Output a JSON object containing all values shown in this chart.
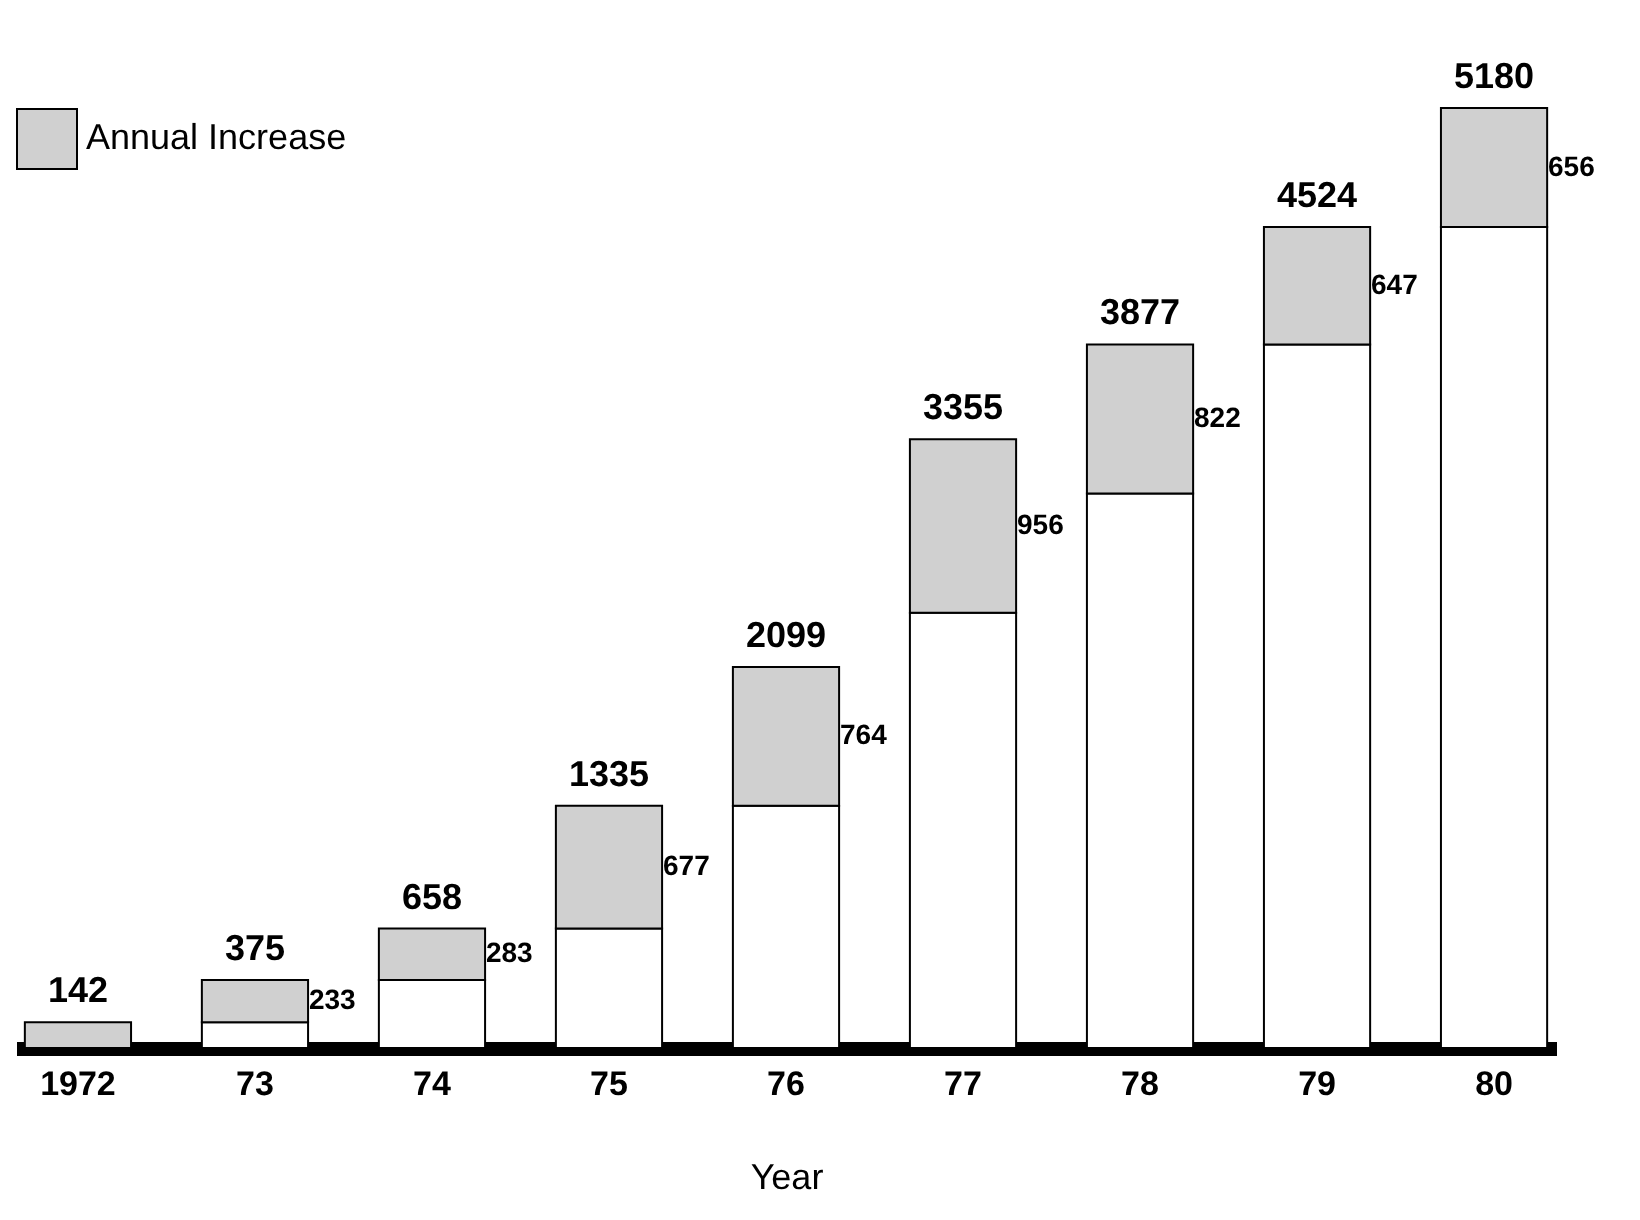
{
  "chart_data": {
    "type": "bar",
    "stacked": true,
    "xlabel": "Year",
    "categories": [
      "1972",
      "73",
      "74",
      "75",
      "76",
      "77",
      "78",
      "79",
      "80"
    ],
    "series": [
      {
        "color": "#ffffff",
        "values": [
          0,
          142,
          375,
          658,
          1335,
          2399,
          3055,
          3877,
          4524
        ]
      },
      {
        "name": "Annual Increase",
        "color": "#d0d0d0",
        "values": [
          142,
          233,
          283,
          677,
          764,
          956,
          822,
          647,
          656
        ],
        "value_labels": [
          null,
          "233",
          "283",
          "677",
          "764",
          "956",
          "822",
          "647",
          "656"
        ]
      }
    ],
    "totals": [
      "142",
      "375",
      "658",
      "1335",
      "2099",
      "3355",
      "3877",
      "4524",
      "5180"
    ],
    "legend": "top left"
  }
}
